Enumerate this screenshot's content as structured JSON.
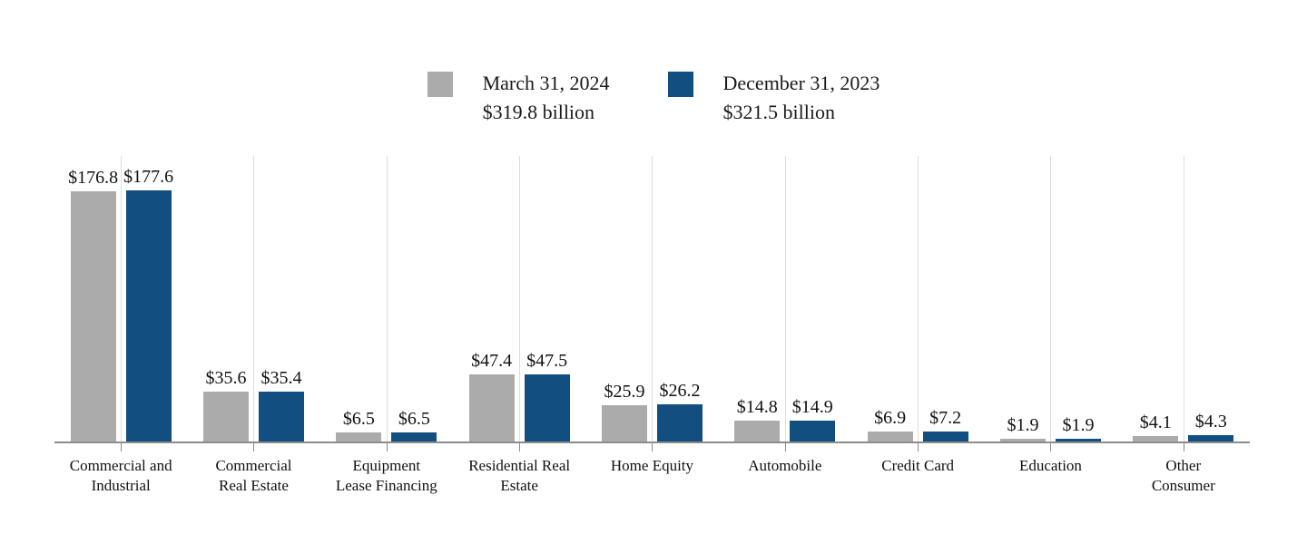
{
  "chart_data": {
    "type": "bar",
    "title": "",
    "categories": [
      "Commercial and\nIndustrial",
      "Commercial\nReal Estate",
      "Equipment\nLease Financing",
      "Residential Real\nEstate",
      "Home Equity",
      "Automobile",
      "Credit Card",
      "Education",
      "Other\nConsumer"
    ],
    "series": [
      {
        "name": "March 31, 2024",
        "total_label": "$319.8 billion",
        "color": "#ABABAB",
        "values": [
          176.8,
          35.6,
          6.5,
          47.4,
          25.9,
          14.8,
          6.9,
          1.9,
          4.1
        ],
        "value_labels": [
          "$176.8",
          "$35.6",
          "$6.5",
          "$47.4",
          "$25.9",
          "$14.8",
          "$6.9",
          "$1.9",
          "$4.1"
        ]
      },
      {
        "name": "December 31, 2023",
        "total_label": "$321.5 billion",
        "color": "#124E80",
        "values": [
          177.6,
          35.4,
          6.5,
          47.5,
          26.2,
          14.9,
          7.2,
          1.9,
          4.3
        ],
        "value_labels": [
          "$177.6",
          "$35.4",
          "$6.5",
          "$47.5",
          "$26.2",
          "$14.9",
          "$7.2",
          "$1.9",
          "$4.3"
        ]
      }
    ],
    "xlabel": "",
    "ylabel": "",
    "ylim": [
      0,
      200
    ],
    "grid": "vertical-category-gridlines",
    "legend_position": "top-center",
    "axis_color": "#8C8C8C",
    "gridline_color": "#DCDCDC"
  }
}
